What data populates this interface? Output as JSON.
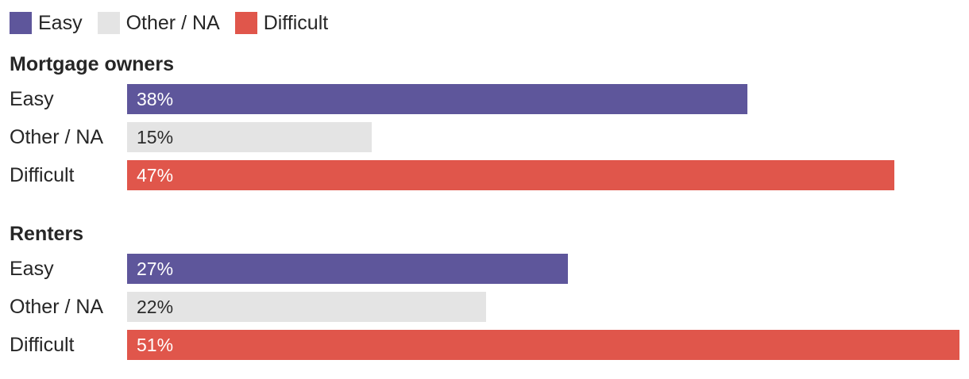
{
  "chart_data": {
    "type": "bar",
    "orientation": "horizontal",
    "title": "",
    "xlabel": "",
    "ylabel": "",
    "xlim": [
      0,
      51
    ],
    "grid": false,
    "legend_position": "top-left",
    "value_suffix": "%",
    "colors": {
      "easy": "#5e569b",
      "other_na": "#e4e4e4",
      "difficult": "#e0564b",
      "text_dark": "#262626",
      "text_light": "#ffffff"
    },
    "legend": [
      {
        "label": "Easy",
        "color": "#5e569b"
      },
      {
        "label": "Other / NA",
        "color": "#e4e4e4"
      },
      {
        "label": "Difficult",
        "color": "#e0564b"
      }
    ],
    "groups": [
      {
        "title": "Mortgage owners",
        "rows": [
          {
            "label": "Easy",
            "value": 38,
            "display": "38%",
            "color": "#5e569b",
            "text_color": "#ffffff"
          },
          {
            "label": "Other / NA",
            "value": 15,
            "display": "15%",
            "color": "#e4e4e4",
            "text_color": "#2b2b2b"
          },
          {
            "label": "Difficult",
            "value": 47,
            "display": "47%",
            "color": "#e0564b",
            "text_color": "#ffffff"
          }
        ]
      },
      {
        "title": "Renters",
        "rows": [
          {
            "label": "Easy",
            "value": 27,
            "display": "27%",
            "color": "#5e569b",
            "text_color": "#ffffff"
          },
          {
            "label": "Other / NA",
            "value": 22,
            "display": "22%",
            "color": "#e4e4e4",
            "text_color": "#2b2b2b"
          },
          {
            "label": "Difficult",
            "value": 51,
            "display": "51%",
            "color": "#e0564b",
            "text_color": "#ffffff"
          }
        ]
      }
    ]
  }
}
